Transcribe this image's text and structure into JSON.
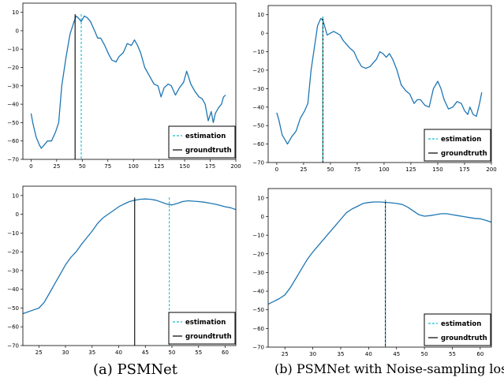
{
  "captions": {
    "a": "(a) PSMNet",
    "b": "(b) PSMNet with Noise-sampling loss"
  },
  "colors": {
    "series": "#1f77b4",
    "estimation": "#17becf",
    "groundtruth": "#000000"
  },
  "chart_data": [
    {
      "type": "line",
      "title": "",
      "xlabel": "",
      "ylabel": "",
      "xlim": [
        -8,
        200
      ],
      "ylim": [
        -70,
        15
      ],
      "xticks": [
        0,
        25,
        50,
        75,
        100,
        125,
        150,
        175,
        200
      ],
      "yticks": [
        -70,
        -60,
        -50,
        -40,
        -30,
        -20,
        -10,
        0,
        10
      ],
      "legend": {
        "position": "lower-right",
        "entries": [
          "estimation",
          "groundtruth"
        ]
      },
      "grid": false,
      "estimation": 49,
      "groundtruth": 43,
      "series": [
        {
          "x": [
            0,
            2,
            5,
            8,
            10,
            13,
            16,
            20,
            24,
            27,
            30,
            34,
            38,
            42,
            44,
            46,
            49,
            52,
            55,
            58,
            62,
            65,
            68,
            72,
            76,
            79,
            83,
            86,
            90,
            94,
            98,
            101,
            104,
            107,
            111,
            115,
            120,
            124,
            127,
            130,
            134,
            137,
            141,
            145,
            149,
            152,
            156,
            160,
            164,
            167,
            170,
            173,
            176,
            178,
            180,
            183,
            186,
            188,
            190
          ],
          "values": [
            -45,
            -51,
            -58,
            -62,
            -64,
            -62,
            -60,
            -60,
            -55,
            -50,
            -30,
            -15,
            -2,
            5,
            8,
            7,
            5,
            8,
            7,
            5,
            0,
            -4,
            -4,
            -8,
            -13,
            -16,
            -17,
            -14,
            -12,
            -7,
            -8,
            -5,
            -8,
            -12,
            -20,
            -24,
            -29,
            -30,
            -36,
            -31,
            -29,
            -30,
            -35,
            -31,
            -28,
            -22,
            -29,
            -33,
            -36,
            -37,
            -40,
            -49,
            -44,
            -50,
            -45,
            -42,
            -40,
            -36,
            -35
          ]
        }
      ]
    },
    {
      "type": "line",
      "title": "",
      "xlabel": "",
      "ylabel": "",
      "xlim": [
        -8,
        200
      ],
      "ylim": [
        -70,
        15
      ],
      "xticks": [
        0,
        25,
        50,
        75,
        100,
        125,
        150,
        175,
        200
      ],
      "yticks": [
        -70,
        -60,
        -50,
        -40,
        -30,
        -20,
        -10,
        0,
        10
      ],
      "legend": {
        "position": "lower-right",
        "entries": [
          "estimation",
          "groundtruth"
        ]
      },
      "grid": false,
      "estimation": 43,
      "groundtruth": 43,
      "series": [
        {
          "x": [
            0,
            2,
            5,
            8,
            10,
            14,
            18,
            22,
            26,
            29,
            32,
            35,
            38,
            41,
            43,
            45,
            47,
            50,
            53,
            56,
            59,
            62,
            65,
            68,
            72,
            75,
            79,
            83,
            87,
            90,
            93,
            96,
            99,
            102,
            105,
            108,
            112,
            116,
            120,
            124,
            128,
            131,
            134,
            138,
            142,
            146,
            150,
            153,
            156,
            160,
            164,
            168,
            172,
            175,
            178,
            180,
            183,
            186,
            189,
            191
          ],
          "values": [
            -43,
            -47,
            -55,
            -58,
            -60,
            -56,
            -53,
            -46,
            -42,
            -38,
            -20,
            -8,
            4,
            8,
            7,
            3,
            -1,
            0,
            1,
            0,
            -1,
            -4,
            -6,
            -8,
            -10,
            -14,
            -18,
            -19,
            -18,
            -16,
            -14,
            -10,
            -11,
            -13,
            -11,
            -14,
            -20,
            -28,
            -31,
            -33,
            -38,
            -36,
            -36,
            -39,
            -40,
            -30,
            -26,
            -30,
            -36,
            -41,
            -40,
            -37,
            -38,
            -42,
            -44,
            -40,
            -44,
            -45,
            -38,
            -32
          ]
        }
      ]
    },
    {
      "type": "line",
      "title": "",
      "xlabel": "",
      "ylabel": "",
      "xlim": [
        22,
        62
      ],
      "ylim": [
        -70,
        15
      ],
      "xticks": [
        25,
        30,
        35,
        40,
        45,
        50,
        55,
        60
      ],
      "yticks": [
        -70,
        -60,
        -50,
        -40,
        -30,
        -20,
        -10,
        0,
        10
      ],
      "legend": {
        "position": "lower-right",
        "entries": [
          "estimation",
          "groundtruth"
        ]
      },
      "grid": false,
      "estimation": 49.5,
      "groundtruth": 43,
      "series": [
        {
          "x": [
            22,
            24,
            25,
            26,
            27,
            28,
            29,
            30,
            31,
            32,
            33,
            34,
            35,
            36,
            37,
            38,
            39,
            40,
            41,
            42,
            43,
            44,
            45,
            46,
            47,
            48,
            49,
            50,
            51,
            52,
            53,
            54,
            55,
            56,
            57,
            58,
            59,
            60,
            61,
            62
          ],
          "values": [
            -53,
            -51,
            -50,
            -47,
            -42,
            -37,
            -32,
            -27,
            -23,
            -20,
            -16,
            -12.5,
            -9,
            -5,
            -2,
            0,
            2,
            4,
            5.5,
            6.8,
            7.5,
            8,
            8.2,
            8,
            7.5,
            6.5,
            5.5,
            5,
            5.8,
            6.8,
            7.2,
            7,
            6.8,
            6.5,
            6,
            5.5,
            4.8,
            4,
            3.5,
            2.5
          ]
        }
      ]
    },
    {
      "type": "line",
      "title": "",
      "xlabel": "",
      "ylabel": "",
      "xlim": [
        22,
        62
      ],
      "ylim": [
        -70,
        15
      ],
      "xticks": [
        25,
        30,
        35,
        40,
        45,
        50,
        55,
        60
      ],
      "yticks": [
        -70,
        -60,
        -50,
        -40,
        -30,
        -20,
        -10,
        0,
        10
      ],
      "legend": {
        "position": "lower-right",
        "entries": [
          "estimation",
          "groundtruth"
        ]
      },
      "grid": false,
      "estimation": 43,
      "groundtruth": 43,
      "series": [
        {
          "x": [
            22,
            23,
            24,
            25,
            26,
            27,
            28,
            29,
            30,
            31,
            32,
            33,
            34,
            35,
            36,
            37,
            38,
            39,
            40,
            41,
            42,
            43,
            44,
            45,
            46,
            47,
            48,
            49,
            50,
            51,
            52,
            53,
            54,
            55,
            56,
            57,
            58,
            59,
            60,
            61,
            62
          ],
          "values": [
            -47,
            -45.5,
            -44,
            -42,
            -38,
            -33,
            -28,
            -23,
            -19,
            -15.5,
            -12,
            -8.5,
            -5,
            -1.5,
            2,
            4,
            5.5,
            7,
            7.5,
            7.8,
            7.8,
            7.6,
            7.4,
            7,
            6.5,
            5,
            3,
            1,
            0.2,
            0.5,
            1,
            1.5,
            1.5,
            1,
            0.5,
            0,
            -0.5,
            -1,
            -1.2,
            -2,
            -3
          ]
        }
      ]
    }
  ]
}
